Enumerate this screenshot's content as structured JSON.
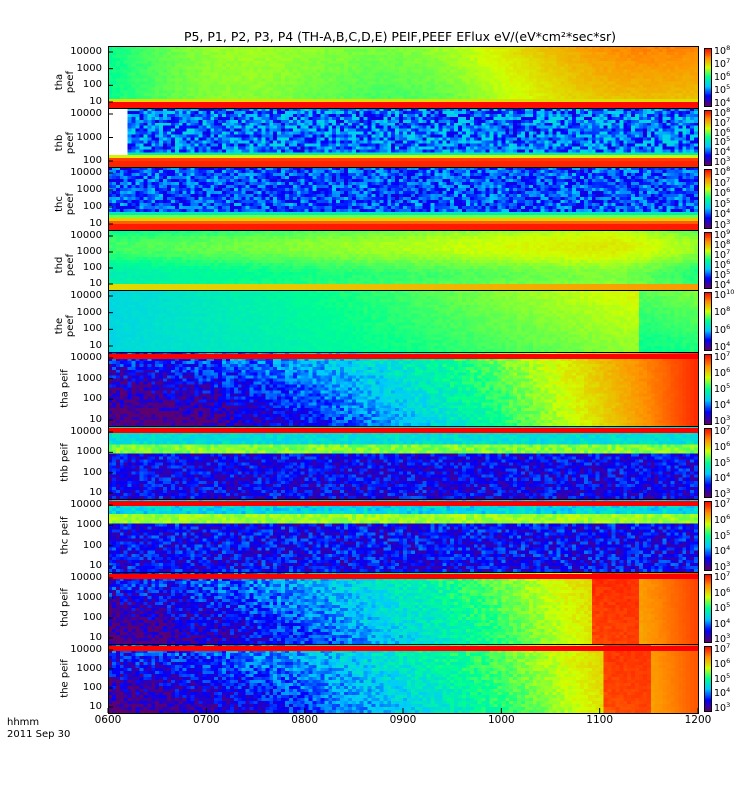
{
  "title": "P5, P1, P2, P3, P4 (TH-A,B,C,D,E) PEIF,PEEF EFlux eV/(eV*cm²*sec*sr)",
  "x_axis": {
    "row1_label": "hhmm",
    "row2_label": "2011 Sep 30",
    "ticks": [
      "0600",
      "0700",
      "0800",
      "0900",
      "1000",
      "1100",
      "1200"
    ]
  },
  "colors": {
    "background": "#ffffff",
    "frame": "#000000",
    "colormap": [
      "#5a0070",
      "#0000ff",
      "#00c8ff",
      "#00ff90",
      "#d0ff00",
      "#ff9000",
      "#ff0000"
    ]
  },
  "chart_data": [
    {
      "type": "heatmap",
      "panel": 1,
      "ylabel": "tha peef",
      "y_ticks": [
        "10000",
        "1000",
        "100",
        "10"
      ],
      "cbar_labels": [
        [
          "10",
          "8"
        ],
        [
          "10",
          "7"
        ],
        [
          "10",
          "6"
        ],
        [
          "10",
          "5"
        ],
        [
          "10",
          "4"
        ]
      ],
      "y_scale": "log",
      "x_range": [
        "0600",
        "1200"
      ],
      "dominant_colors": [
        "green",
        "yellow",
        "orange-red band at bottom"
      ]
    },
    {
      "type": "heatmap",
      "panel": 2,
      "ylabel": "thb peef",
      "y_ticks": [
        "10000",
        "1000",
        "100"
      ],
      "cbar_labels": [
        [
          "10",
          "8"
        ],
        [
          "10",
          "7"
        ],
        [
          "10",
          "6"
        ],
        [
          "10",
          "5"
        ],
        [
          "10",
          "4"
        ],
        [
          "10",
          "3"
        ]
      ],
      "y_scale": "log",
      "x_range": [
        "0600",
        "1200"
      ],
      "dominant_colors": [
        "blue",
        "purple",
        "cyan-green-red bottom bands"
      ]
    },
    {
      "type": "heatmap",
      "panel": 3,
      "ylabel": "thc peef",
      "y_ticks": [
        "10000",
        "1000",
        "100",
        "10"
      ],
      "cbar_labels": [
        [
          "10",
          "8"
        ],
        [
          "10",
          "7"
        ],
        [
          "10",
          "6"
        ],
        [
          "10",
          "5"
        ],
        [
          "10",
          "4"
        ],
        [
          "10",
          "3"
        ]
      ],
      "y_scale": "log",
      "x_range": [
        "0600",
        "1200"
      ],
      "dominant_colors": [
        "blue",
        "cyan-green-red bottom bands"
      ]
    },
    {
      "type": "heatmap",
      "panel": 4,
      "ylabel": "thd peef",
      "y_ticks": [
        "10000",
        "1000",
        "100",
        "10"
      ],
      "cbar_labels": [
        [
          "10",
          "9"
        ],
        [
          "10",
          "8"
        ],
        [
          "10",
          "7"
        ],
        [
          "10",
          "6"
        ],
        [
          "10",
          "5"
        ],
        [
          "10",
          "4"
        ]
      ],
      "y_scale": "log",
      "x_range": [
        "0600",
        "1200"
      ],
      "dominant_colors": [
        "green",
        "yellow"
      ]
    },
    {
      "type": "heatmap",
      "panel": 5,
      "ylabel": "the peef",
      "y_ticks": [
        "10000",
        "1000",
        "100",
        "10"
      ],
      "cbar_labels": [
        [
          "10",
          "10"
        ],
        [
          "10",
          "8"
        ],
        [
          "10",
          "6"
        ],
        [
          "10",
          "4"
        ]
      ],
      "y_scale": "log",
      "x_range": [
        "0600",
        "1200"
      ],
      "dominant_colors": [
        "cyan",
        "green",
        "yellow"
      ]
    },
    {
      "type": "heatmap",
      "panel": 6,
      "ylabel": "tha peif",
      "y_ticks": [
        "10000",
        "1000",
        "100",
        "10"
      ],
      "cbar_labels": [
        [
          "10",
          "7"
        ],
        [
          "10",
          "6"
        ],
        [
          "10",
          "5"
        ],
        [
          "10",
          "4"
        ],
        [
          "10",
          "3"
        ]
      ],
      "y_scale": "log",
      "x_range": [
        "0600",
        "1200"
      ],
      "dominant_colors": [
        "blue",
        "cyan",
        "green",
        "yellow",
        "red"
      ]
    },
    {
      "type": "heatmap",
      "panel": 7,
      "ylabel": "thb peif",
      "y_ticks": [
        "10000",
        "1000",
        "100",
        "10"
      ],
      "cbar_labels": [
        [
          "10",
          "7"
        ],
        [
          "10",
          "6"
        ],
        [
          "10",
          "5"
        ],
        [
          "10",
          "4"
        ],
        [
          "10",
          "3"
        ]
      ],
      "y_scale": "log",
      "x_range": [
        "0600",
        "1200"
      ],
      "dominant_colors": [
        "dark purple",
        "blue",
        "green-yellow bands"
      ]
    },
    {
      "type": "heatmap",
      "panel": 8,
      "ylabel": "thc peif",
      "y_ticks": [
        "10000",
        "1000",
        "100",
        "10"
      ],
      "cbar_labels": [
        [
          "10",
          "7"
        ],
        [
          "10",
          "6"
        ],
        [
          "10",
          "5"
        ],
        [
          "10",
          "4"
        ],
        [
          "10",
          "3"
        ]
      ],
      "y_scale": "log",
      "x_range": [
        "0600",
        "1200"
      ],
      "dominant_colors": [
        "dark purple",
        "blue",
        "green-yellow bands"
      ]
    },
    {
      "type": "heatmap",
      "panel": 9,
      "ylabel": "thd peif",
      "y_ticks": [
        "10000",
        "1000",
        "100",
        "10"
      ],
      "cbar_labels": [
        [
          "10",
          "7"
        ],
        [
          "10",
          "6"
        ],
        [
          "10",
          "5"
        ],
        [
          "10",
          "4"
        ],
        [
          "10",
          "3"
        ]
      ],
      "y_scale": "log",
      "x_range": [
        "0600",
        "1200"
      ],
      "dominant_colors": [
        "cyan",
        "green",
        "yellow",
        "red"
      ]
    },
    {
      "type": "heatmap",
      "panel": 10,
      "ylabel": "the peif",
      "y_ticks": [
        "10000",
        "1000",
        "100",
        "10"
      ],
      "cbar_labels": [
        [
          "10",
          "7"
        ],
        [
          "10",
          "6"
        ],
        [
          "10",
          "5"
        ],
        [
          "10",
          "4"
        ],
        [
          "10",
          "3"
        ]
      ],
      "y_scale": "log",
      "x_range": [
        "0600",
        "1200"
      ],
      "dominant_colors": [
        "cyan",
        "green",
        "yellow",
        "red"
      ]
    }
  ]
}
